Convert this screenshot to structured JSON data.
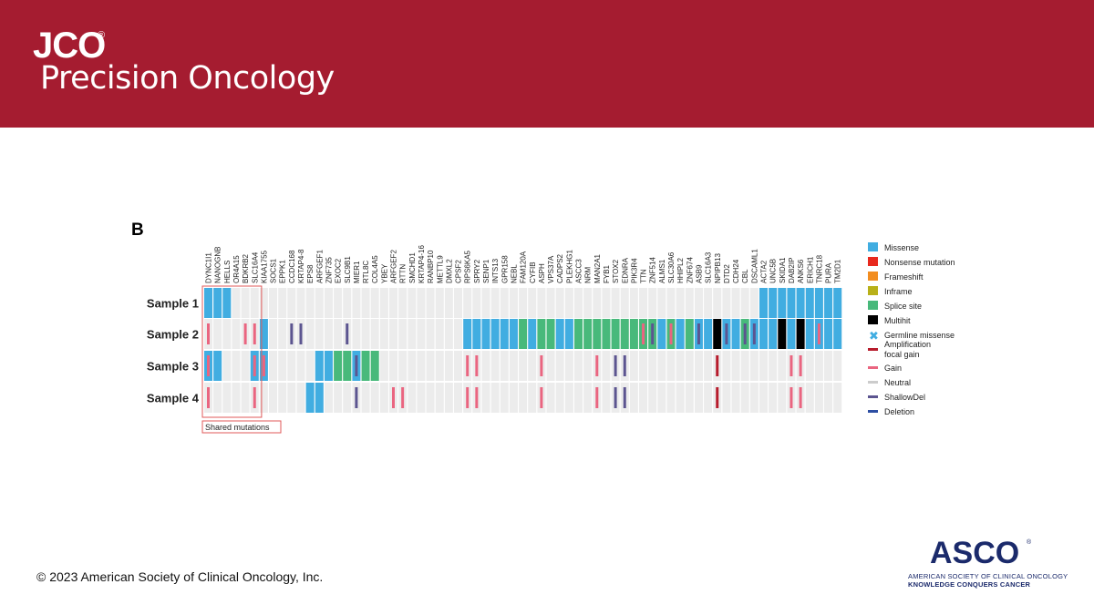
{
  "header": {
    "brand": "JCO",
    "registered": "®",
    "journal": "Precision Oncology",
    "color": "#a51c30"
  },
  "figure": {
    "panel_label": "B",
    "shared_box_label": "Shared mutations"
  },
  "footer": {
    "copyright": "© 2023 American Society of Clinical Oncology, Inc.",
    "asco_name": "ASCO",
    "asco_registered": "®",
    "asco_line1": "AMERICAN SOCIETY OF CLINICAL ONCOLOGY",
    "asco_line2": "KNOWLEDGE CONQUERS CANCER"
  },
  "chart_data": {
    "type": "heatmap",
    "title": "",
    "samples": [
      "Sample 1",
      "Sample 2",
      "Sample 3",
      "Sample 4"
    ],
    "genes": [
      "DYNC1I1",
      "NANOGNB",
      "HELLS",
      "OR4A15",
      "BDKRB2",
      "SLC16A4",
      "KIAA1755",
      "SOCS1",
      "EPPK1",
      "CCDC168",
      "KRTAP4-8",
      "EPS8",
      "ARFGEF1",
      "ZNF735",
      "EXOC2",
      "SLC9B1",
      "MIER1",
      "RTL8C",
      "COL4A5",
      "YBEY",
      "ARFGEF2",
      "RTTN",
      "SMCHD1",
      "KRTAP4-16",
      "RANBP10",
      "METTL9",
      "DMXL2",
      "CPSF2",
      "RPS6KA5",
      "SPRY2",
      "SENP1",
      "INTS13",
      "GPR158",
      "NEBL",
      "FAM120A",
      "CYFIB",
      "ASPH",
      "VPS37A",
      "CADPS2",
      "PLEKHG1",
      "ASCC3",
      "NRM",
      "MAN2A1",
      "FYB1",
      "STOX2",
      "EDNRA",
      "PIK3R4",
      "TTN",
      "ZNF514",
      "ALMS1",
      "SLC30A6",
      "HHIPL2",
      "ZNF674",
      "ASB9",
      "SLC16A3",
      "NPIPB13",
      "DTD2",
      "CDH24",
      "CBL",
      "DSCAML1",
      "ACTA2",
      "UNC5B",
      "SKIDA1",
      "DAB2IP",
      "ANKS6",
      "ERICH1",
      "TNRC18",
      "PURA",
      "TM2D1"
    ],
    "shared_gene_count": 6,
    "legend": [
      {
        "label": "Missense",
        "kind": "box",
        "color": "#41ade1"
      },
      {
        "label": "Nonsense mutation",
        "kind": "box",
        "color": "#e8291e"
      },
      {
        "label": "Frameshift",
        "kind": "box",
        "color": "#f28d20"
      },
      {
        "label": "Inframe",
        "kind": "box",
        "color": "#b8b019"
      },
      {
        "label": "Splice site",
        "kind": "box",
        "color": "#48b97b"
      },
      {
        "label": "Multihit",
        "kind": "box",
        "color": "#000000"
      },
      {
        "label": "Germline missense",
        "kind": "cross",
        "color": "#41ade1"
      },
      {
        "label": "Amplification focal gain",
        "kind": "line",
        "color": "#b71c2c"
      },
      {
        "label": "Gain",
        "kind": "line",
        "color": "#ea6580"
      },
      {
        "label": "Neutral",
        "kind": "line",
        "color": "#cccccc"
      },
      {
        "label": "ShallowDel",
        "kind": "line",
        "color": "#5c5590"
      },
      {
        "label": "Deletion",
        "kind": "line",
        "color": "#2d4ea3"
      }
    ],
    "fill_colors": {
      "M": "#41ade1",
      "S": "#48b97b",
      "H": "#000000"
    },
    "cnv_colors": {
      "g": "#ea6580",
      "a": "#b71c2c",
      "s": "#5c5590",
      "d": "#2d4ea3"
    },
    "mutations": [
      "MMM.........................................................MMMMMMMMMMMMMHMMMMM",
      "......M.....................MMMMMMSMSSMMSSSSSSSSSMSMSMMHMMSMMMHMHMMMMS...............",
      "MM...MM.....MMSSMSS..................................................................",
      "...........MM.......................................................................H."
    ],
    "mutations_note": "",
    "cnv": [
      "....................................................................",
      "g...gg...ss....s...............................gs.g..s..s.ss......g....s..gggg...gg..g.....",
      "g....gg.........s...........gg......g.....g.ss.........a.......gg......gg...g",
      "g....g..........s...gg......gg......g.....g.ss.........a.......gg......gg...g"
    ]
  }
}
